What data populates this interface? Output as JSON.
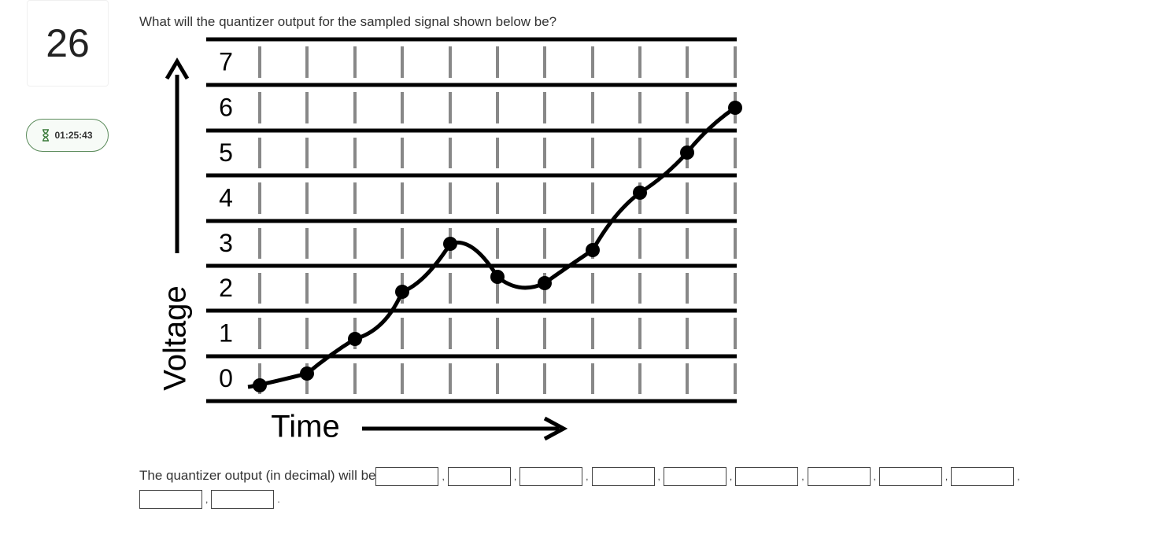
{
  "question": {
    "number": "26",
    "timer": "01:25:43",
    "prompt": "What will the quantizer output for the sampled signal shown below be?",
    "figure": {
      "levels": [
        0,
        1,
        2,
        3,
        4,
        5,
        6,
        7
      ],
      "y_label": "Voltage",
      "x_label": "Time"
    },
    "answer_prefix": "The quantizer output (in decimal) will be",
    "separator": ",",
    "terminator": "."
  }
}
